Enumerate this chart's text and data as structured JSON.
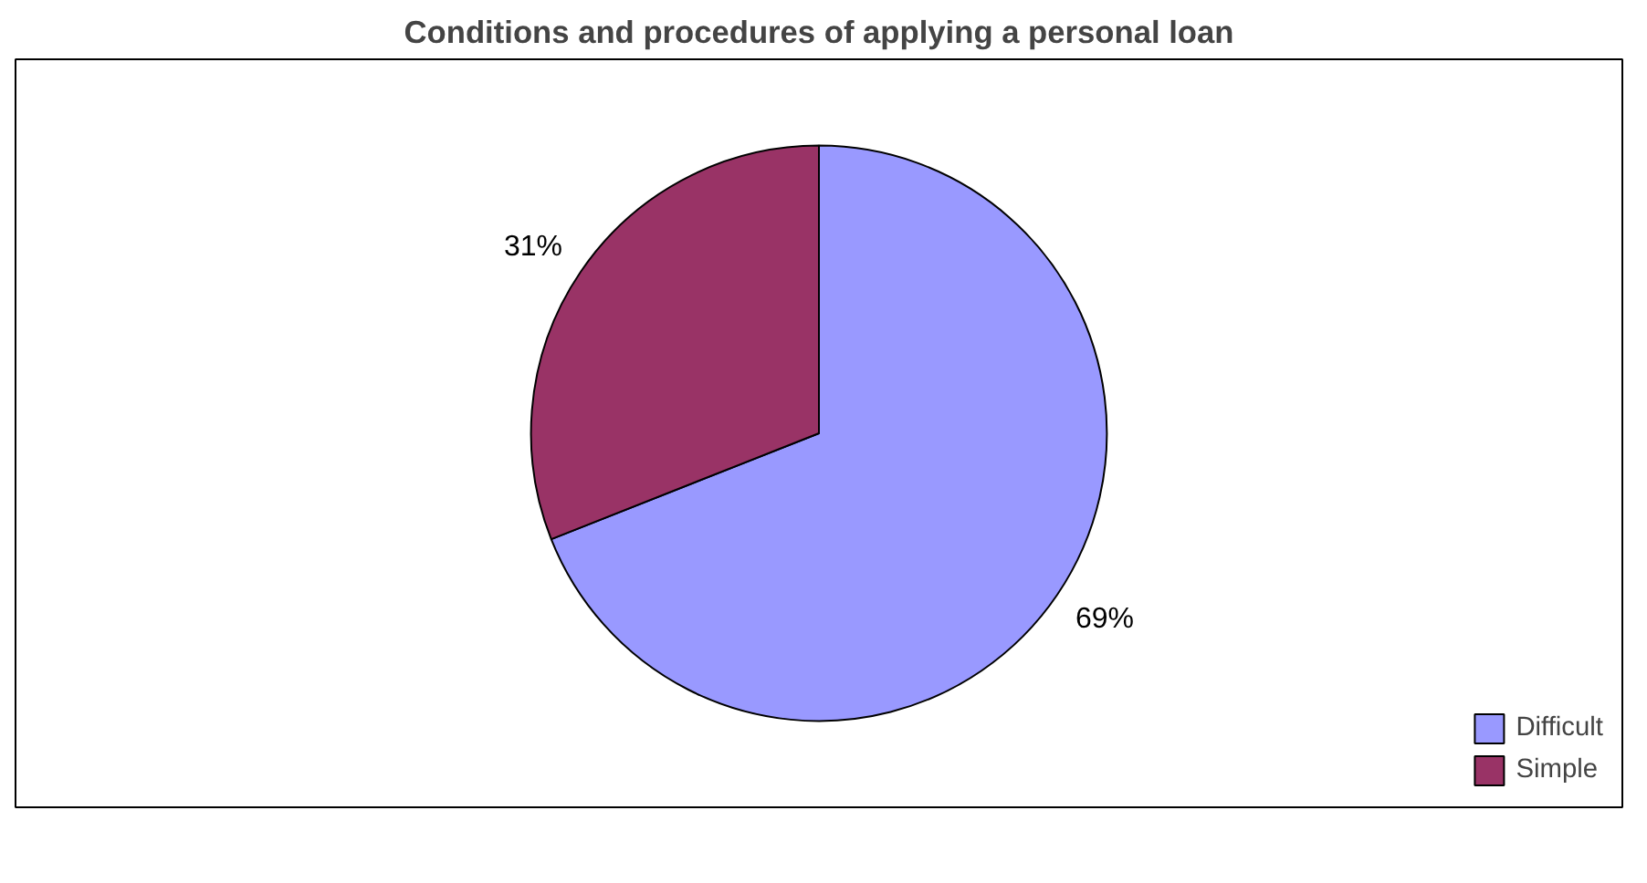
{
  "chart_data": {
    "type": "pie",
    "title": "Conditions and procedures of applying a personal loan",
    "categories": [
      "Difficult",
      "Simple"
    ],
    "values": [
      69,
      31
    ],
    "colors": [
      "#9999ff",
      "#993366"
    ],
    "value_labels": [
      "69%",
      "31%"
    ],
    "legend": "bottom right"
  }
}
